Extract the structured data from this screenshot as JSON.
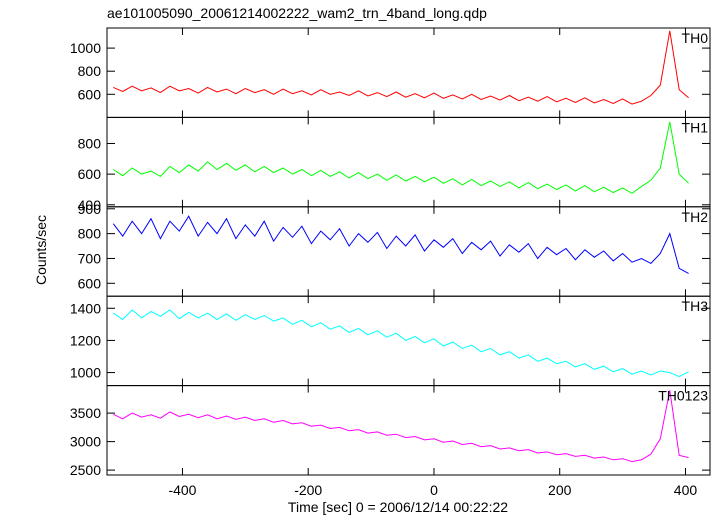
{
  "chart_data": {
    "type": "line",
    "title": "ae101005090_20061214002222_wam2_trn_4band_long.qdp",
    "xlabel": "Time [sec] 0 = 2006/12/14 00:22:22",
    "ylabel": "Counts/sec",
    "xlim": [
      -520,
      439
    ],
    "xticks": [
      -400,
      -200,
      0,
      200,
      400
    ],
    "x": [
      -510,
      -495,
      -480,
      -465,
      -450,
      -435,
      -420,
      -405,
      -390,
      -375,
      -360,
      -345,
      -330,
      -315,
      -300,
      -285,
      -270,
      -255,
      -240,
      -225,
      -210,
      -195,
      -180,
      -165,
      -150,
      -135,
      -120,
      -105,
      -90,
      -75,
      -60,
      -45,
      -30,
      -15,
      0,
      15,
      30,
      45,
      60,
      75,
      90,
      105,
      120,
      135,
      150,
      165,
      180,
      195,
      210,
      225,
      240,
      255,
      270,
      285,
      300,
      315,
      330,
      345,
      360,
      375,
      390,
      405
    ],
    "series": [
      {
        "name": "TH0",
        "color": "#ff0000",
        "ylim": [
          400,
          1174
        ],
        "yticks": [
          600,
          800,
          1000
        ],
        "values": [
          660,
          625,
          670,
          630,
          655,
          615,
          670,
          630,
          650,
          610,
          660,
          620,
          645,
          605,
          650,
          615,
          640,
          600,
          645,
          605,
          630,
          595,
          640,
          600,
          620,
          590,
          630,
          585,
          615,
          580,
          620,
          575,
          605,
          570,
          610,
          565,
          595,
          560,
          600,
          555,
          585,
          550,
          590,
          545,
          575,
          540,
          580,
          535,
          565,
          530,
          570,
          525,
          555,
          520,
          560,
          515,
          540,
          590,
          680,
          1150,
          640,
          570
        ]
      },
      {
        "name": "TH1",
        "color": "#00ff00",
        "ylim": [
          387,
          970
        ],
        "yticks": [
          400,
          600,
          800
        ],
        "values": [
          630,
          590,
          640,
          600,
          620,
          585,
          650,
          610,
          660,
          620,
          680,
          630,
          670,
          625,
          660,
          615,
          650,
          610,
          640,
          600,
          630,
          590,
          625,
          585,
          615,
          575,
          610,
          570,
          600,
          560,
          595,
          555,
          585,
          550,
          580,
          540,
          570,
          530,
          565,
          525,
          555,
          520,
          550,
          510,
          545,
          505,
          535,
          500,
          530,
          490,
          525,
          485,
          515,
          480,
          510,
          475,
          520,
          560,
          640,
          940,
          600,
          540
        ]
      },
      {
        "name": "TH2",
        "color": "#0000ff",
        "ylim": [
          548,
          908
        ],
        "yticks": [
          600,
          700,
          800,
          900
        ],
        "values": [
          840,
          790,
          850,
          800,
          860,
          780,
          850,
          810,
          870,
          790,
          845,
          800,
          860,
          780,
          835,
          790,
          850,
          770,
          825,
          785,
          830,
          760,
          810,
          775,
          820,
          750,
          800,
          765,
          805,
          740,
          790,
          750,
          795,
          730,
          775,
          745,
          780,
          720,
          765,
          735,
          770,
          710,
          755,
          725,
          760,
          700,
          745,
          715,
          740,
          695,
          735,
          705,
          730,
          690,
          720,
          685,
          700,
          680,
          720,
          800,
          660,
          640
        ]
      },
      {
        "name": "TH3",
        "color": "#00ffff",
        "ylim": [
          919,
          1475
        ],
        "yticks": [
          1000,
          1200,
          1400
        ],
        "values": [
          1370,
          1330,
          1390,
          1340,
          1380,
          1350,
          1390,
          1335,
          1375,
          1340,
          1370,
          1330,
          1365,
          1325,
          1360,
          1330,
          1355,
          1320,
          1340,
          1300,
          1325,
          1285,
          1310,
          1270,
          1290,
          1250,
          1275,
          1235,
          1260,
          1220,
          1245,
          1200,
          1225,
          1185,
          1210,
          1165,
          1190,
          1150,
          1170,
          1130,
          1150,
          1110,
          1130,
          1090,
          1110,
          1070,
          1090,
          1055,
          1070,
          1035,
          1055,
          1020,
          1040,
          1005,
          1025,
          990,
          1010,
          985,
          1010,
          1000,
          975,
          1005
        ]
      },
      {
        "name": "TH0123",
        "color": "#ff00ff",
        "ylim": [
          2414,
          3983
        ],
        "yticks": [
          2500,
          3000,
          3500
        ],
        "values": [
          3480,
          3400,
          3500,
          3430,
          3470,
          3410,
          3520,
          3440,
          3480,
          3420,
          3470,
          3400,
          3450,
          3390,
          3430,
          3370,
          3400,
          3340,
          3370,
          3310,
          3330,
          3270,
          3290,
          3230,
          3250,
          3190,
          3210,
          3150,
          3170,
          3110,
          3130,
          3070,
          3090,
          3030,
          3050,
          2990,
          3010,
          2950,
          2970,
          2910,
          2930,
          2870,
          2890,
          2840,
          2860,
          2800,
          2820,
          2770,
          2790,
          2740,
          2760,
          2710,
          2730,
          2680,
          2700,
          2650,
          2680,
          2780,
          3050,
          3900,
          2760,
          2720
        ]
      }
    ]
  }
}
